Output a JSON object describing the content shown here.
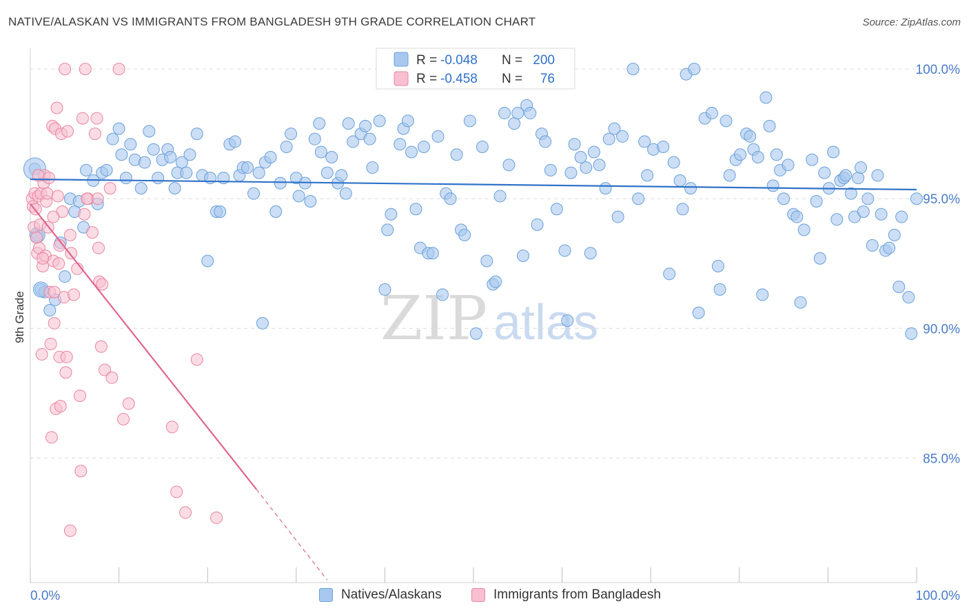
{
  "title": "NATIVE/ALASKAN VS IMMIGRANTS FROM BANGLADESH 9TH GRADE CORRELATION CHART",
  "source": "Source: ZipAtlas.com",
  "watermark": {
    "zip": "ZIP",
    "atlas": "atlas"
  },
  "colors": {
    "blue_fill": "#a9c8ef",
    "blue_stroke": "#6a9fd8",
    "blue_line": "#2f72c8",
    "pink_fill": "#f7bfd0",
    "pink_stroke": "#e8859f",
    "pink_line": "#e0648e",
    "tick_label": "#4a7bc8",
    "grid": "#dcdcdc"
  },
  "legend": {
    "rows": [
      {
        "r_label": "R =",
        "r_value": "-0.048",
        "n_label": "N =",
        "n_value": "200"
      },
      {
        "r_label": "R =",
        "r_value": "-0.458",
        "n_label": "N =",
        "n_value": "76"
      }
    ]
  },
  "chart_data": {
    "type": "scatter",
    "title": "NATIVE/ALASKAN VS IMMIGRANTS FROM BANGLADESH 9TH GRADE CORRELATION CHART",
    "xlabel": "",
    "ylabel": "9th Grade",
    "xlim": [
      0,
      100
    ],
    "ylim": [
      80.2,
      100.8
    ],
    "x_tick_labels": [
      "0.0%",
      "100.0%"
    ],
    "y_ticks": [
      85,
      90,
      95,
      100
    ],
    "y_tick_labels": [
      "85.0%",
      "90.0%",
      "95.0%",
      "100.0%"
    ],
    "grid": true,
    "legend_position": "top-center",
    "series": [
      {
        "name": "Natives/Alaskans",
        "color": "#a9c8ef",
        "R": -0.048,
        "N": 200,
        "trend": {
          "x": [
            0,
            100
          ],
          "y": [
            95.75,
            95.35
          ]
        },
        "points": [
          [
            0.5,
            96.15
          ],
          [
            0.8,
            93.6
          ],
          [
            1.2,
            91.5
          ],
          [
            1.6,
            91.4
          ],
          [
            2.2,
            90.7
          ],
          [
            2.8,
            91.1
          ],
          [
            3.4,
            93.3
          ],
          [
            3.9,
            92.0
          ],
          [
            4.5,
            95.0
          ],
          [
            5.0,
            94.5
          ],
          [
            5.5,
            94.9
          ],
          [
            6.0,
            93.9
          ],
          [
            6.3,
            96.1
          ],
          [
            7.1,
            95.7
          ],
          [
            7.6,
            94.8
          ],
          [
            8.1,
            96.0
          ],
          [
            8.6,
            96.1
          ],
          [
            9.3,
            97.3
          ],
          [
            10.0,
            97.7
          ],
          [
            10.3,
            96.7
          ],
          [
            10.8,
            95.8
          ],
          [
            11.3,
            97.1
          ],
          [
            11.8,
            96.5
          ],
          [
            12.5,
            95.4
          ],
          [
            12.9,
            96.4
          ],
          [
            13.4,
            97.6
          ],
          [
            13.9,
            96.9
          ],
          [
            14.4,
            95.8
          ],
          [
            14.9,
            96.5
          ],
          [
            15.5,
            96.9
          ],
          [
            15.8,
            96.6
          ],
          [
            16.3,
            95.4
          ],
          [
            16.6,
            96.0
          ],
          [
            17.1,
            96.4
          ],
          [
            17.6,
            96.0
          ],
          [
            18.0,
            96.7
          ],
          [
            18.8,
            97.5
          ],
          [
            19.4,
            95.9
          ],
          [
            20.0,
            92.6
          ],
          [
            20.3,
            95.8
          ],
          [
            21.0,
            94.5
          ],
          [
            21.4,
            94.5
          ],
          [
            21.8,
            95.8
          ],
          [
            22.5,
            97.1
          ],
          [
            23.1,
            97.2
          ],
          [
            23.6,
            95.9
          ],
          [
            24.0,
            96.2
          ],
          [
            24.5,
            96.2
          ],
          [
            25.2,
            95.2
          ],
          [
            25.8,
            96.0
          ],
          [
            26.2,
            90.2
          ],
          [
            26.5,
            96.4
          ],
          [
            27.1,
            96.6
          ],
          [
            27.7,
            94.5
          ],
          [
            28.2,
            95.6
          ],
          [
            28.9,
            97.0
          ],
          [
            29.4,
            97.5
          ],
          [
            30.0,
            95.8
          ],
          [
            30.3,
            95.1
          ],
          [
            31.0,
            95.6
          ],
          [
            31.6,
            94.9
          ],
          [
            32.1,
            97.3
          ],
          [
            32.6,
            97.9
          ],
          [
            32.8,
            96.8
          ],
          [
            33.5,
            96.0
          ],
          [
            34.0,
            96.6
          ],
          [
            34.7,
            95.6
          ],
          [
            35.1,
            95.9
          ],
          [
            35.6,
            95.2
          ],
          [
            35.9,
            97.9
          ],
          [
            36.4,
            97.2
          ],
          [
            37.3,
            97.5
          ],
          [
            37.8,
            97.8
          ],
          [
            38.3,
            97.3
          ],
          [
            38.6,
            96.2
          ],
          [
            39.4,
            98.0
          ],
          [
            40.0,
            91.5
          ],
          [
            40.3,
            93.8
          ],
          [
            40.7,
            94.4
          ],
          [
            41.7,
            97.1
          ],
          [
            42.1,
            97.7
          ],
          [
            42.6,
            98.0
          ],
          [
            43.0,
            96.8
          ],
          [
            43.5,
            94.6
          ],
          [
            44.0,
            93.1
          ],
          [
            44.4,
            97.0
          ],
          [
            44.9,
            92.9
          ],
          [
            45.4,
            92.9
          ],
          [
            46.0,
            97.4
          ],
          [
            46.5,
            91.3
          ],
          [
            46.9,
            95.2
          ],
          [
            47.4,
            95.0
          ],
          [
            48.1,
            96.7
          ],
          [
            48.6,
            93.8
          ],
          [
            49.0,
            93.6
          ],
          [
            49.6,
            98.0
          ],
          [
            50.3,
            89.8
          ],
          [
            51.0,
            97.0
          ],
          [
            51.5,
            92.6
          ],
          [
            52.2,
            91.7
          ],
          [
            52.5,
            91.8
          ],
          [
            53.0,
            95.1
          ],
          [
            53.5,
            98.3
          ],
          [
            54.0,
            96.3
          ],
          [
            54.6,
            97.9
          ],
          [
            55.0,
            98.3
          ],
          [
            55.6,
            92.8
          ],
          [
            56.0,
            98.6
          ],
          [
            56.4,
            98.3
          ],
          [
            57.2,
            94.0
          ],
          [
            57.7,
            97.5
          ],
          [
            58.1,
            97.2
          ],
          [
            58.7,
            96.1
          ],
          [
            59.4,
            94.6
          ],
          [
            60.3,
            93.0
          ],
          [
            60.6,
            90.3
          ],
          [
            61.0,
            96.0
          ],
          [
            61.4,
            97.1
          ],
          [
            62.1,
            96.6
          ],
          [
            62.7,
            96.2
          ],
          [
            63.2,
            92.9
          ],
          [
            63.6,
            96.8
          ],
          [
            64.2,
            96.3
          ],
          [
            64.9,
            95.4
          ],
          [
            65.3,
            97.3
          ],
          [
            65.9,
            97.7
          ],
          [
            66.3,
            94.3
          ],
          [
            66.8,
            97.4
          ],
          [
            68.0,
            100.0
          ],
          [
            68.6,
            95.0
          ],
          [
            69.3,
            97.2
          ],
          [
            69.6,
            95.9
          ],
          [
            70.3,
            96.9
          ],
          [
            71.4,
            97.0
          ],
          [
            72.1,
            92.1
          ],
          [
            72.6,
            96.4
          ],
          [
            73.3,
            95.7
          ],
          [
            73.6,
            94.6
          ],
          [
            74.0,
            99.8
          ],
          [
            74.5,
            95.4
          ],
          [
            74.9,
            100.0
          ],
          [
            75.4,
            90.6
          ],
          [
            76.1,
            98.1
          ],
          [
            76.9,
            98.3
          ],
          [
            77.6,
            92.4
          ],
          [
            77.8,
            91.5
          ],
          [
            78.5,
            98.0
          ],
          [
            78.9,
            95.9
          ],
          [
            79.6,
            96.5
          ],
          [
            80.1,
            96.7
          ],
          [
            80.8,
            97.5
          ],
          [
            81.2,
            97.4
          ],
          [
            81.6,
            96.9
          ],
          [
            82.1,
            96.6
          ],
          [
            82.6,
            91.3
          ],
          [
            83.0,
            98.9
          ],
          [
            83.4,
            97.8
          ],
          [
            83.8,
            95.5
          ],
          [
            84.2,
            96.7
          ],
          [
            84.6,
            96.1
          ],
          [
            85.0,
            95.0
          ],
          [
            85.5,
            96.3
          ],
          [
            86.1,
            94.4
          ],
          [
            86.5,
            94.3
          ],
          [
            86.9,
            91.0
          ],
          [
            87.3,
            93.8
          ],
          [
            88.2,
            96.5
          ],
          [
            88.7,
            94.9
          ],
          [
            89.1,
            92.7
          ],
          [
            89.6,
            96.0
          ],
          [
            90.1,
            95.4
          ],
          [
            90.6,
            96.8
          ],
          [
            91.0,
            94.2
          ],
          [
            91.4,
            95.7
          ],
          [
            91.8,
            95.8
          ],
          [
            92.0,
            95.9
          ],
          [
            92.6,
            95.2
          ],
          [
            93.0,
            94.3
          ],
          [
            93.4,
            95.8
          ],
          [
            93.7,
            96.2
          ],
          [
            94.0,
            94.5
          ],
          [
            94.5,
            95.0
          ],
          [
            95.0,
            93.2
          ],
          [
            95.6,
            95.9
          ],
          [
            96.0,
            94.4
          ],
          [
            96.5,
            93.0
          ],
          [
            96.9,
            93.1
          ],
          [
            97.5,
            93.6
          ],
          [
            98.0,
            91.6
          ],
          [
            98.3,
            94.3
          ],
          [
            99.1,
            91.2
          ],
          [
            99.4,
            89.8
          ],
          [
            100.0,
            95.0
          ]
        ]
      },
      {
        "name": "Immigrants from Bangladesh",
        "color": "#f7bfd0",
        "R": -0.458,
        "N": 76,
        "trend_solid": {
          "x": [
            0,
            25.5
          ],
          "y": [
            94.8,
            83.8
          ]
        },
        "trend_dashed": {
          "x": [
            25.5,
            33.5
          ],
          "y": [
            83.8,
            80.3
          ]
        },
        "points": [
          [
            0.2,
            95.0
          ],
          [
            0.3,
            94.7
          ],
          [
            0.4,
            93.9
          ],
          [
            0.5,
            95.2
          ],
          [
            0.6,
            94.6
          ],
          [
            0.7,
            93.5
          ],
          [
            0.8,
            92.9
          ],
          [
            0.9,
            95.1
          ],
          [
            1.0,
            93.1
          ],
          [
            1.1,
            94.0
          ],
          [
            1.2,
            95.2
          ],
          [
            1.3,
            89.0
          ],
          [
            1.4,
            92.4
          ],
          [
            1.5,
            95.6
          ],
          [
            1.6,
            95.9
          ],
          [
            1.7,
            92.8
          ],
          [
            1.8,
            94.9
          ],
          [
            1.9,
            95.2
          ],
          [
            2.0,
            93.9
          ],
          [
            2.1,
            95.8
          ],
          [
            2.2,
            91.4
          ],
          [
            2.3,
            89.4
          ],
          [
            2.4,
            85.8
          ],
          [
            2.5,
            97.8
          ],
          [
            2.6,
            92.6
          ],
          [
            2.7,
            90.2
          ],
          [
            2.8,
            97.7
          ],
          [
            2.9,
            86.9
          ],
          [
            3.0,
            98.5
          ],
          [
            3.1,
            95.1
          ],
          [
            3.2,
            92.5
          ],
          [
            3.3,
            88.9
          ],
          [
            3.4,
            87.0
          ],
          [
            3.5,
            97.5
          ],
          [
            3.6,
            94.5
          ],
          [
            3.8,
            91.2
          ],
          [
            4.0,
            88.3
          ],
          [
            4.2,
            97.6
          ],
          [
            4.5,
            93.6
          ],
          [
            4.6,
            92.9
          ],
          [
            4.9,
            91.3
          ],
          [
            5.3,
            92.3
          ],
          [
            5.6,
            87.4
          ],
          [
            5.9,
            98.1
          ],
          [
            6.1,
            94.4
          ],
          [
            6.5,
            95.0
          ],
          [
            7.0,
            93.7
          ],
          [
            7.3,
            97.5
          ],
          [
            7.5,
            98.1
          ],
          [
            7.7,
            93.1
          ],
          [
            7.8,
            91.8
          ],
          [
            8.0,
            89.3
          ],
          [
            8.4,
            88.4
          ],
          [
            9.0,
            95.4
          ],
          [
            9.2,
            88.1
          ],
          [
            10.5,
            86.5
          ],
          [
            11.1,
            87.1
          ],
          [
            16.0,
            86.2
          ],
          [
            16.5,
            83.7
          ],
          [
            17.5,
            82.9
          ],
          [
            18.8,
            88.8
          ],
          [
            21.0,
            82.7
          ],
          [
            5.7,
            84.5
          ],
          [
            4.5,
            82.2
          ],
          [
            3.9,
            100.0
          ],
          [
            6.2,
            100.0
          ],
          [
            10.0,
            100.0
          ],
          [
            4.1,
            88.9
          ],
          [
            6.4,
            95.0
          ],
          [
            2.6,
            94.3
          ],
          [
            1.4,
            92.7
          ],
          [
            3.3,
            93.2
          ],
          [
            0.9,
            95.9
          ],
          [
            7.6,
            95.0
          ],
          [
            8.1,
            91.7
          ],
          [
            2.7,
            91.4
          ]
        ]
      }
    ]
  },
  "bottom_legend": [
    {
      "label": "Natives/Alaskans"
    },
    {
      "label": "Immigrants from Bangladesh"
    }
  ]
}
